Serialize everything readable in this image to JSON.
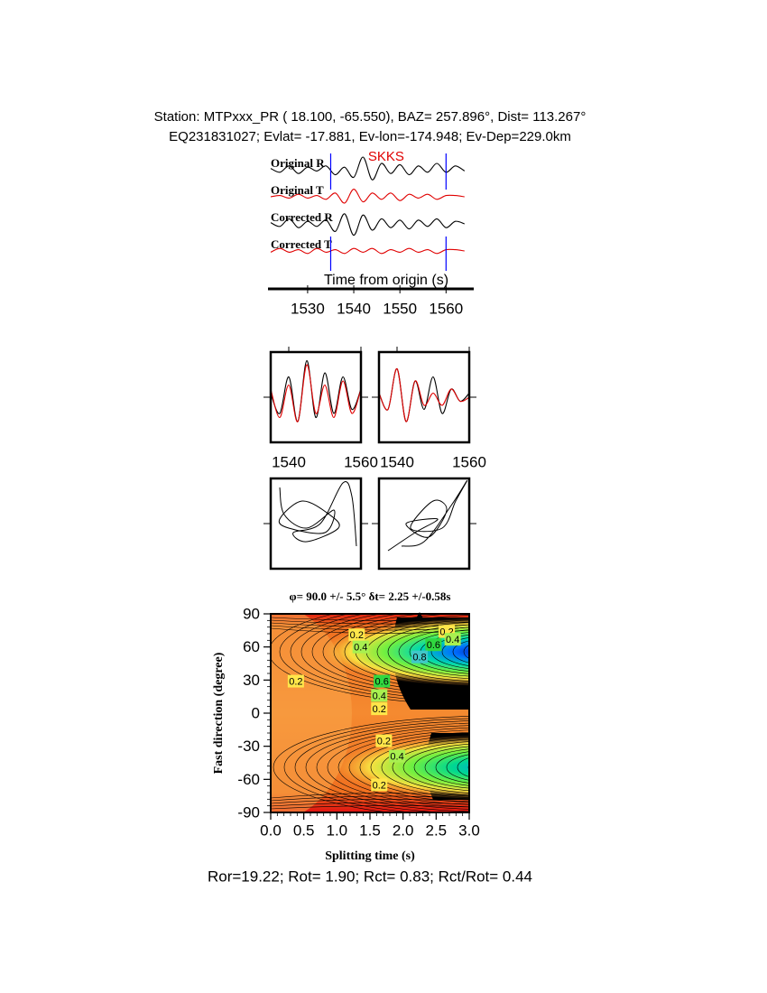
{
  "chart_data": [
    {
      "type": "waveforms",
      "title": "Station: MTPxxx_PR (  18.100,  -65.550), BAZ=  257.896°, Dist=  113.267°",
      "subtitle": "EQ231831027; Evlat= -17.881, Ev-lon=-174.948; Ev-Dep=229.0km",
      "xlabel": "Time from origin (s)",
      "xlim": [
        1522,
        1566
      ],
      "xticks": [
        1530,
        1540,
        1550,
        1560
      ],
      "x": [
        1522,
        1524,
        1526,
        1528,
        1530,
        1532,
        1534,
        1536,
        1538,
        1540,
        1542,
        1544,
        1546,
        1548,
        1550,
        1552,
        1554,
        1556,
        1558,
        1560,
        1562,
        1564
      ],
      "series": [
        {
          "name": "Original R",
          "color": "#000000",
          "values": [
            0.1,
            -0.2,
            0.3,
            -0.3,
            0.2,
            -0.1,
            0.3,
            -0.4,
            0.2,
            -0.6,
            1.0,
            -0.8,
            0.5,
            -0.3,
            0.4,
            -0.4,
            0.3,
            -0.2,
            0.5,
            -0.2,
            0.3,
            -0.1
          ]
        },
        {
          "name": "Original T",
          "color": "#e00000",
          "values": [
            0,
            0.1,
            -0.1,
            0.2,
            -0.1,
            0.1,
            -0.2,
            0.3,
            -0.5,
            0.6,
            -0.4,
            0.3,
            -0.2,
            0.3,
            -0.3,
            0.2,
            -0.1,
            0.2,
            -0.2,
            0.1,
            0.1,
            0
          ]
        },
        {
          "name": "Corrected R",
          "color": "#000000",
          "values": [
            0.1,
            -0.2,
            0.4,
            -0.3,
            0.2,
            -0.2,
            0.3,
            -0.6,
            0.8,
            -0.9,
            0.7,
            -0.5,
            0.4,
            -0.3,
            0.3,
            -0.4,
            0.3,
            -0.2,
            0.4,
            -0.3,
            0.2,
            0
          ]
        },
        {
          "name": "Corrected T",
          "color": "#e00000",
          "values": [
            -0.1,
            0.2,
            -0.1,
            0.1,
            -0.2,
            0.2,
            -0.1,
            0.1,
            -0.2,
            0.2,
            -0.1,
            0.2,
            -0.2,
            0.1,
            -0.1,
            0.2,
            -0.1,
            0.1,
            -0.2,
            0.1,
            0.1,
            0
          ]
        }
      ],
      "annotations": [
        {
          "text": "SKKS",
          "x": 1547,
          "color": "#e00000"
        }
      ],
      "markers": {
        "color": "#0000ff",
        "x": [
          1535,
          1560
        ]
      }
    },
    {
      "type": "window-waveforms",
      "xlim": [
        1535,
        1560
      ],
      "xticks": [
        1540,
        1560
      ],
      "x": [
        1535,
        1537.5,
        1540,
        1542.5,
        1545,
        1547.5,
        1550,
        1552.5,
        1555,
        1557.5,
        1560
      ],
      "panels": [
        {
          "series": [
            {
              "color": "#000000",
              "values": [
                0.1,
                -0.4,
                0.5,
                -0.6,
                0.9,
                -0.5,
                0.6,
                -0.4,
                0.5,
                -0.3,
                0.2
              ]
            },
            {
              "color": "#e00000",
              "values": [
                0.2,
                -0.5,
                0.3,
                -0.6,
                0.8,
                -0.4,
                0.3,
                -0.5,
                0.4,
                -0.4,
                0.2
              ]
            }
          ]
        },
        {
          "series": [
            {
              "color": "#000000",
              "values": [
                0.1,
                -0.3,
                0.7,
                -0.6,
                0.4,
                -0.3,
                0.5,
                -0.4,
                0.2,
                -0.1,
                0.1
              ]
            },
            {
              "color": "#e00000",
              "values": [
                0.1,
                -0.3,
                0.7,
                -0.6,
                0.4,
                -0.2,
                0.1,
                -0.2,
                0.2,
                -0.1,
                0
              ]
            }
          ]
        }
      ]
    },
    {
      "type": "particle-motion",
      "xlim": [
        -1,
        1
      ],
      "ylim": [
        -1,
        1
      ],
      "panels": [
        {
          "x": [
            -0.8,
            -0.7,
            -0.2,
            0.4,
            0.2,
            -0.6,
            -0.8,
            -0.3,
            0.3,
            0.5,
            -0.2,
            -0.5,
            0.1,
            0.6,
            0.8,
            0.9
          ],
          "y": [
            0.8,
            0.2,
            -0.1,
            0.3,
            -0.2,
            -0.1,
            0.1,
            0.5,
            0.2,
            -0.1,
            -0.4,
            -0.2,
            0.0,
            0.9,
            0.6,
            -0.5
          ]
        },
        {
          "x": [
            -0.8,
            -0.2,
            0.3,
            -0.4,
            0.1,
            0.5,
            0.2,
            -0.3,
            0.4,
            0.7,
            0.95,
            0.6,
            0.0,
            -0.5
          ],
          "y": [
            -0.6,
            -0.2,
            0.1,
            0.0,
            -0.3,
            0.3,
            0.5,
            -0.1,
            -0.1,
            0.5,
            0.95,
            0.4,
            -0.4,
            -0.5
          ]
        }
      ]
    },
    {
      "type": "contour",
      "title": "φ= 90.0 +/- 5.5° δt= 2.25 +/-0.58s",
      "xlabel": "Splitting time (s)",
      "ylabel": "Fast direction (degree)",
      "xlim": [
        0,
        3
      ],
      "ylim": [
        -90,
        90
      ],
      "xticks": [
        {
          "value": 0,
          "label": "0.0"
        },
        0.5,
        {
          "value": 1,
          "label": "1.0"
        },
        1.5,
        {
          "value": 2,
          "label": "2.0"
        },
        2.5,
        {
          "value": 3,
          "label": "3.0"
        }
      ],
      "yticks": [
        -90,
        -60,
        -30,
        0,
        30,
        60,
        90
      ],
      "best": {
        "x": 2.25,
        "y": 90
      },
      "contour_labels": [
        {
          "value": 0.2,
          "x": 1.3,
          "y": 71
        },
        {
          "value": 0.4,
          "x": 1.36,
          "y": 60
        },
        {
          "value": 0.2,
          "x": 2.66,
          "y": 74
        },
        {
          "value": 0.4,
          "x": 2.75,
          "y": 67
        },
        {
          "value": 0.6,
          "x": 2.46,
          "y": 62
        },
        {
          "value": 0.8,
          "x": 2.25,
          "y": 51
        },
        {
          "value": 0.6,
          "x": 1.68,
          "y": 29
        },
        {
          "value": 0.4,
          "x": 1.64,
          "y": 16
        },
        {
          "value": 0.2,
          "x": 1.64,
          "y": 4
        },
        {
          "value": 0.2,
          "x": 0.38,
          "y": 29
        },
        {
          "value": 0.2,
          "x": 1.71,
          "y": -25
        },
        {
          "value": 0.4,
          "x": 1.91,
          "y": -39
        },
        {
          "value": 0.2,
          "x": 1.64,
          "y": -65
        }
      ]
    }
  ],
  "footer": "Ror=19.22; Rot= 1.90; Rct= 0.83; Rct/Rot= 0.44"
}
